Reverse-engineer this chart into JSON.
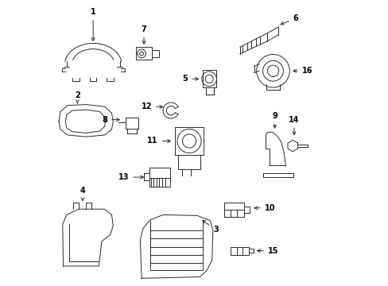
{
  "title": "",
  "background_color": "#ffffff",
  "line_color": "#2a2a2a",
  "label_color": "#000000",
  "fig_width": 4.89,
  "fig_height": 3.6,
  "dpi": 100
}
